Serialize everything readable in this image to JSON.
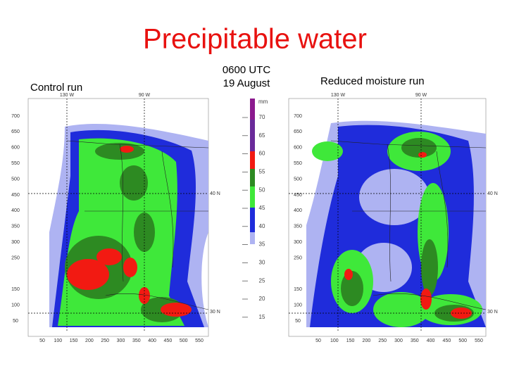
{
  "title": "Precipitable water",
  "panels": [
    {
      "label": "Control run"
    },
    {
      "label": "Reduced moisture run"
    }
  ],
  "time": [
    "0600 UTC",
    "19 August"
  ],
  "colorbar": {
    "unit": "mm",
    "labels": [
      70,
      65,
      60,
      55,
      50,
      45,
      40,
      35,
      30,
      25,
      20,
      15
    ]
  },
  "map_axes": {
    "y_labels": [
      700,
      650,
      600,
      550,
      500,
      450,
      400,
      350,
      300,
      250,
      150,
      100,
      50
    ],
    "x_labels": [
      50,
      100,
      150,
      200,
      250,
      300,
      350,
      400,
      450,
      500,
      550
    ],
    "lon_labels": [
      "130 W",
      "90 W"
    ],
    "lat_labels": [
      "40 N",
      "30 N"
    ]
  }
}
